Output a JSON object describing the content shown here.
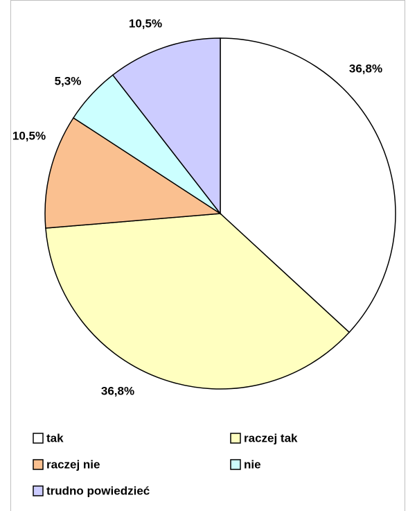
{
  "chart_data": {
    "type": "pie",
    "categories": [
      "tak",
      "raczej tak",
      "raczej nie",
      "nie",
      "trudno powiedzieć"
    ],
    "values": [
      36.8,
      36.8,
      10.5,
      5.3,
      10.5
    ],
    "value_labels": [
      "36,8%",
      "36,8%",
      "10,5%",
      "5,3%",
      "10,5%"
    ],
    "colors": [
      "#ffffff",
      "#ffffc0",
      "#fac090",
      "#ccffff",
      "#ccccff"
    ],
    "legend": "bottom"
  }
}
